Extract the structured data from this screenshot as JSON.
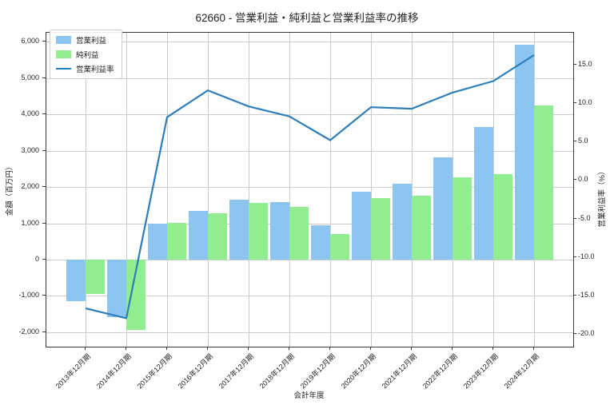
{
  "window": {
    "title": "62660 - 営業利益・純利益と営業利益率の推移"
  },
  "chart_data": {
    "type": "bar",
    "title": "62660 - 営業利益・純利益と営業利益率の推移",
    "xlabel": "会計年度",
    "ylabel_left": "金額（百万円）",
    "ylabel_right": "営業利益率（%）",
    "grid": true,
    "legend_position": "upper left",
    "categories": [
      "2013年12月期",
      "2014年12月期",
      "2015年12月期",
      "2016年12月期",
      "2017年12月期",
      "2018年12月期",
      "2019年12月期",
      "2020年12月期",
      "2021年12月期",
      "2022年12月期",
      "2023年12月期",
      "2024年12月期"
    ],
    "series": [
      {
        "name": "営業利益",
        "kind": "bar",
        "axis": "left",
        "color": "#8cc5f0",
        "values": [
          -1150,
          -1580,
          990,
          1340,
          1650,
          1590,
          940,
          1880,
          2080,
          2810,
          3650,
          5920
        ]
      },
      {
        "name": "純利益",
        "kind": "bar",
        "axis": "left",
        "color": "#90ee90",
        "values": [
          -950,
          -1940,
          1020,
          1270,
          1570,
          1460,
          710,
          1690,
          1750,
          2270,
          2360,
          4240
        ]
      },
      {
        "name": "営業利益率",
        "kind": "line",
        "axis": "right",
        "color": "#2e7eb9",
        "values": [
          -16.7,
          -18.0,
          8.2,
          11.7,
          9.6,
          8.3,
          5.2,
          9.5,
          9.3,
          11.4,
          12.9,
          16.3
        ]
      }
    ],
    "left_axis": {
      "tick_labels": [
        "6,000",
        "5,000",
        "4,000",
        "3,000",
        "2,000",
        "1,000",
        "0",
        "-1,000",
        "-2,000"
      ],
      "tick_values": [
        6000,
        5000,
        4000,
        3000,
        2000,
        1000,
        0,
        -1000,
        -2000
      ],
      "ylim": [
        -2400,
        6250
      ]
    },
    "right_axis": {
      "tick_labels": [
        "15.0",
        "10.0",
        "5.0",
        "0.0",
        "-5.0",
        "-10.0",
        "-15.0",
        "-20.0"
      ],
      "tick_values": [
        15,
        10,
        5,
        0,
        -5,
        -10,
        -15,
        -20
      ],
      "ylim": [
        -21.7,
        19.2
      ]
    },
    "colors": {
      "grid": "#cccccc",
      "spine": "#3a3a3a",
      "background": "#ffffff"
    }
  }
}
